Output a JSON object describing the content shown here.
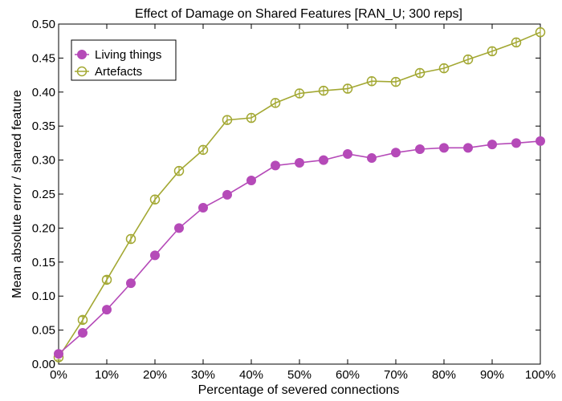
{
  "chart_data": {
    "type": "line",
    "title": "Effect of Damage on Shared Features [RAN_U; 300 reps]",
    "xlabel": "Percentage of severed connections",
    "ylabel": "Mean absolute error / shared feature",
    "x": [
      0,
      5,
      10,
      15,
      20,
      25,
      30,
      35,
      40,
      45,
      50,
      55,
      60,
      65,
      70,
      75,
      80,
      85,
      90,
      95,
      100
    ],
    "xlim": [
      0,
      100
    ],
    "ylim": [
      0,
      0.5
    ],
    "x_ticks": [
      0,
      10,
      20,
      30,
      40,
      50,
      60,
      70,
      80,
      90,
      100
    ],
    "x_tick_labels": [
      "0%",
      "10%",
      "20%",
      "30%",
      "40%",
      "50%",
      "60%",
      "70%",
      "80%",
      "90%",
      "100%"
    ],
    "y_ticks": [
      0,
      0.05,
      0.1,
      0.15,
      0.2,
      0.25,
      0.3,
      0.35,
      0.4,
      0.45,
      0.5
    ],
    "y_tick_labels": [
      "0.00",
      "0.05",
      "0.10",
      "0.15",
      "0.20",
      "0.25",
      "0.30",
      "0.35",
      "0.40",
      "0.45",
      "0.50"
    ],
    "grid": false,
    "legend_position": "top-left",
    "series": [
      {
        "name": "Living things",
        "color": "#b54ab8",
        "marker": "filled-circle",
        "values": [
          0.015,
          0.046,
          0.08,
          0.119,
          0.16,
          0.2,
          0.23,
          0.249,
          0.27,
          0.292,
          0.296,
          0.3,
          0.309,
          0.303,
          0.311,
          0.316,
          0.318,
          0.318,
          0.323,
          0.325,
          0.328
        ],
        "error": [
          0.003,
          0.003,
          0.003,
          0.004,
          0.004,
          0.004,
          0.004,
          0.004,
          0.004,
          0.004,
          0.003,
          0.004,
          0.004,
          0.004,
          0.004,
          0.004,
          0.004,
          0.004,
          0.004,
          0.004,
          0.004
        ]
      },
      {
        "name": "Artefacts",
        "color": "#a3a833",
        "marker": "open-circle",
        "values": [
          0.01,
          0.065,
          0.124,
          0.184,
          0.242,
          0.284,
          0.315,
          0.359,
          0.362,
          0.384,
          0.398,
          0.402,
          0.405,
          0.416,
          0.415,
          0.428,
          0.435,
          0.448,
          0.46,
          0.473,
          0.488
        ],
        "error": [
          0.004,
          0.005,
          0.005,
          0.006,
          0.006,
          0.006,
          0.006,
          0.006,
          0.006,
          0.006,
          0.006,
          0.006,
          0.006,
          0.006,
          0.006,
          0.006,
          0.006,
          0.006,
          0.006,
          0.006,
          0.006
        ]
      }
    ]
  }
}
